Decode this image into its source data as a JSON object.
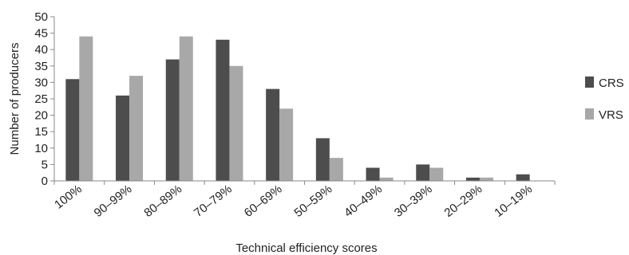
{
  "chart_data": {
    "type": "bar",
    "xlabel": "Technical efficiency scores",
    "ylabel": "Number of producers",
    "ylim": [
      0,
      50
    ],
    "yticks": [
      0,
      5,
      10,
      15,
      20,
      25,
      30,
      35,
      40,
      45,
      50
    ],
    "categories": [
      "100%",
      "90–99%",
      "80–89%",
      "70–79%",
      "60–69%",
      "50–59%",
      "40–49%",
      "30–39%",
      "20–29%",
      "10–19%"
    ],
    "series": [
      {
        "name": "CRS",
        "color": "#4d4d4d",
        "values": [
          31,
          26,
          37,
          43,
          28,
          13,
          4,
          5,
          1,
          2
        ]
      },
      {
        "name": "VRS",
        "color": "#a8a8a8",
        "values": [
          44,
          32,
          44,
          35,
          22,
          7,
          1,
          4,
          1,
          0
        ]
      }
    ],
    "grid": false,
    "legend_position": "right"
  }
}
